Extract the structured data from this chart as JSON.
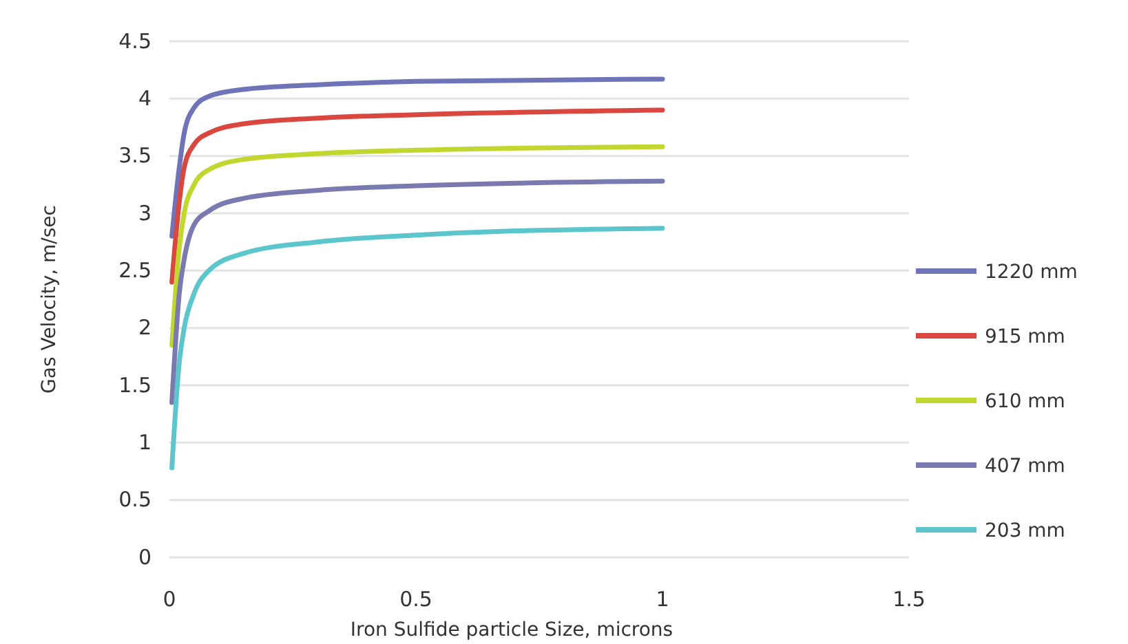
{
  "chart_data": {
    "type": "line",
    "xlabel": "Iron Sulfide particle Size, microns",
    "ylabel": "Gas Velocity, m/sec",
    "xlim": [
      0,
      1.5
    ],
    "xticks": [
      0,
      0.5,
      1,
      1.5
    ],
    "ylim": [
      0,
      4.5
    ],
    "yticks": [
      0,
      0.5,
      1,
      1.5,
      2,
      2.5,
      3,
      3.5,
      4,
      4.5
    ],
    "grid": "y",
    "legend": "right",
    "marker": "none",
    "line_style": "solid",
    "x": [
      0.005,
      0.02,
      0.03,
      0.05,
      0.08,
      0.15,
      0.3,
      0.5,
      1
    ],
    "series": [
      {
        "name": "1220 mm",
        "color": "#6f74b8",
        "values": [
          2.8,
          3.4,
          3.7,
          3.92,
          4.02,
          4.08,
          4.12,
          4.15,
          4.17
        ]
      },
      {
        "name": "915 mm",
        "color": "#d9473f",
        "values": [
          2.4,
          3.1,
          3.4,
          3.6,
          3.7,
          3.78,
          3.83,
          3.86,
          3.9
        ]
      },
      {
        "name": "610 mm",
        "color": "#c2d630",
        "values": [
          1.85,
          2.7,
          3.0,
          3.25,
          3.38,
          3.47,
          3.52,
          3.55,
          3.58
        ]
      },
      {
        "name": "407 mm",
        "color": "#7a7ab0",
        "values": [
          1.35,
          2.3,
          2.6,
          2.9,
          3.02,
          3.13,
          3.2,
          3.24,
          3.28
        ]
      },
      {
        "name": "203 mm",
        "color": "#5cc6cc",
        "values": [
          0.78,
          1.7,
          2.0,
          2.3,
          2.5,
          2.65,
          2.75,
          2.81,
          2.87
        ]
      }
    ]
  }
}
